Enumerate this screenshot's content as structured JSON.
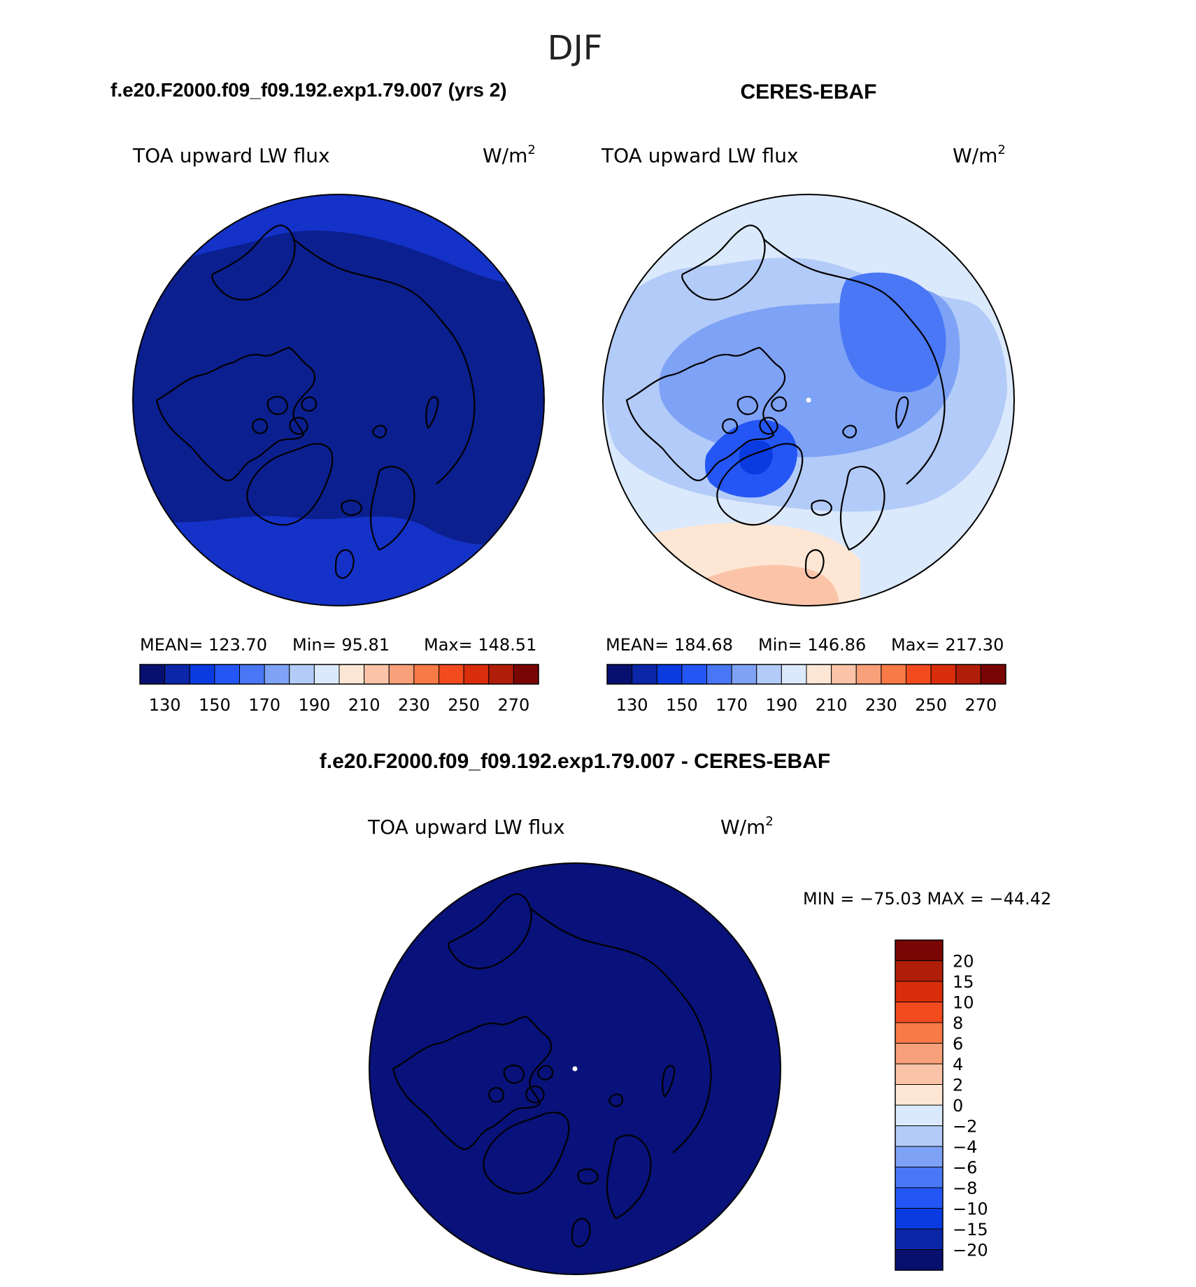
{
  "page": {
    "title": "DJF"
  },
  "panels": [
    {
      "case_title": "f.e20.F2000.f09_f09.192.exp1.79.007 (yrs 2)",
      "variable": "TOA upward LW flux",
      "units": "W/m",
      "units_sup": "2",
      "stats": {
        "mean": "MEAN= 123.70",
        "min": "Min=   95.81",
        "max": "Max= 148.51"
      },
      "dominant_color": "#0b1f8f",
      "outer_color": "#1432c8"
    },
    {
      "case_title": "CERES-EBAF",
      "variable": "TOA upward LW flux",
      "units": "W/m",
      "units_sup": "2",
      "stats": {
        "mean": "MEAN= 184.68",
        "min": "Min= 146.86",
        "max": "Max= 217.30"
      },
      "dominant_color": "#8fb4f5",
      "outer_color": "#fde3d2"
    }
  ],
  "shared_colorbar": {
    "colors": [
      "#08106f",
      "#0b26a8",
      "#0a3be0",
      "#2456f5",
      "#4a77f5",
      "#7ea2f5",
      "#b3cbf8",
      "#dbe9fc",
      "#fde7d4",
      "#fbc4a8",
      "#f8a07a",
      "#f87a46",
      "#f24b1e",
      "#d92d0b",
      "#b01e0a",
      "#7a0505"
    ],
    "tick_labels": [
      "130",
      "150",
      "170",
      "190",
      "210",
      "230",
      "250",
      "270"
    ]
  },
  "difference": {
    "title": "f.e20.F2000.f09_f09.192.exp1.79.007 - CERES-EBAF",
    "variable": "TOA upward LW flux",
    "units": "W/m",
    "units_sup": "2",
    "minmax": "MIN = −75.03 MAX = −44.42",
    "dominant_color": "#08127a",
    "colorbar": {
      "colors": [
        "#7a0505",
        "#b01e0a",
        "#d92d0b",
        "#f24b1e",
        "#f87a46",
        "#f8a07a",
        "#fbc4a8",
        "#fde7d4",
        "#dbe9fc",
        "#b3cbf8",
        "#7ea2f5",
        "#4a77f5",
        "#2456f5",
        "#0a3be0",
        "#0b26a8",
        "#08106f"
      ],
      "labels": [
        "20",
        "15",
        "10",
        "8",
        "6",
        "4",
        "2",
        "0",
        "−2",
        "−4",
        "−6",
        "−8",
        "−10",
        "−15",
        "−20"
      ]
    }
  }
}
